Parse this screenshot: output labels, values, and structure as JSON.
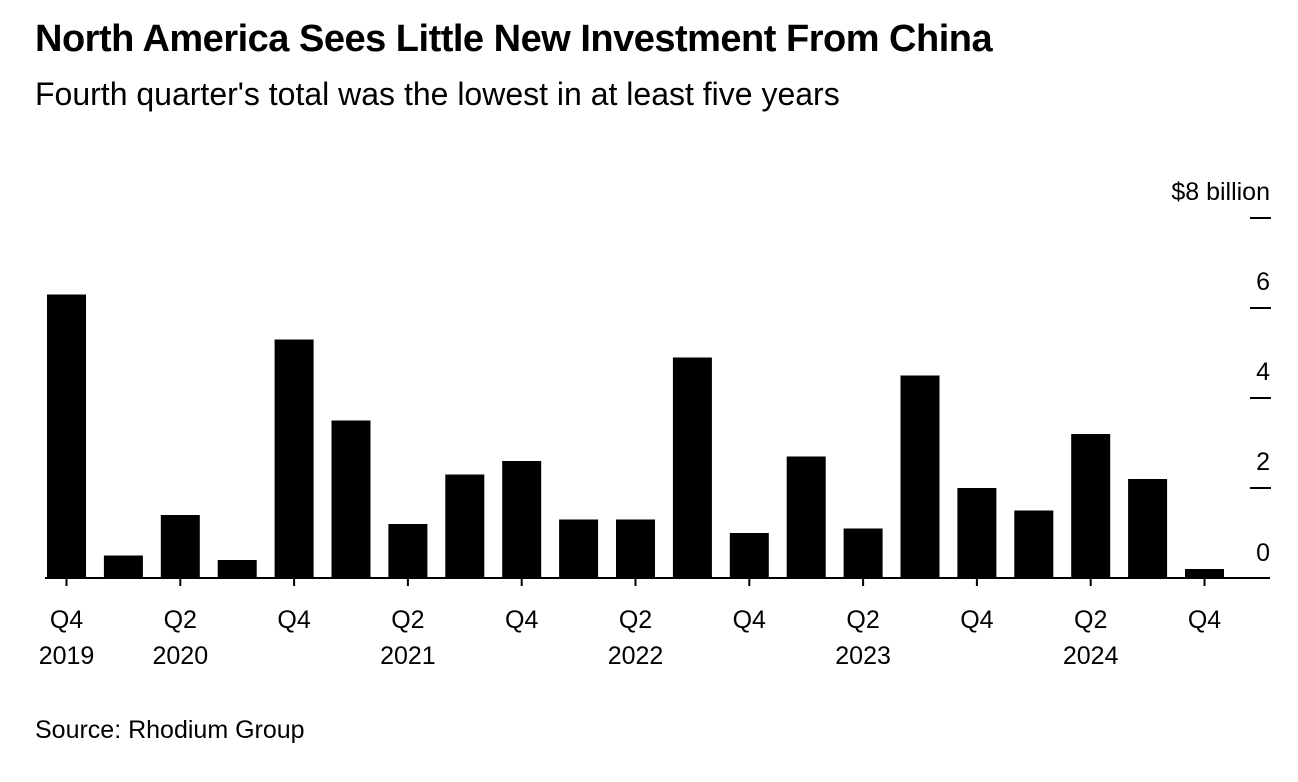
{
  "title": "North America Sees Little New Investment From China",
  "subtitle": "Fourth quarter's total was the lowest in at least five years",
  "source": "Source: Rhodium Group",
  "chart_data": {
    "type": "bar",
    "categories": [
      "Q4 2019",
      "Q1 2020",
      "Q2 2020",
      "Q3 2020",
      "Q4 2020",
      "Q1 2021",
      "Q2 2021",
      "Q3 2021",
      "Q4 2021",
      "Q1 2022",
      "Q2 2022",
      "Q3 2022",
      "Q4 2022",
      "Q1 2023",
      "Q2 2023",
      "Q3 2023",
      "Q4 2023",
      "Q1 2024",
      "Q2 2024",
      "Q3 2024",
      "Q4 2024"
    ],
    "values": [
      6.3,
      0.5,
      1.4,
      0.4,
      5.3,
      3.5,
      1.2,
      2.3,
      2.6,
      1.3,
      1.3,
      4.9,
      1.0,
      2.7,
      1.1,
      4.5,
      2.0,
      1.5,
      3.2,
      2.2,
      0.2
    ],
    "color": "#000000",
    "ylim": [
      0,
      8
    ],
    "y_ticks": [
      {
        "value": 0,
        "label": "0"
      },
      {
        "value": 2,
        "label": "2"
      },
      {
        "value": 4,
        "label": "4"
      },
      {
        "value": 6,
        "label": "6"
      },
      {
        "value": 8,
        "label": "$8 billion"
      }
    ],
    "x_ticks": [
      {
        "index": 0,
        "quarter": "Q4",
        "year": "2019"
      },
      {
        "index": 2,
        "quarter": "Q2",
        "year": "2020"
      },
      {
        "index": 4,
        "quarter": "Q4",
        "year": ""
      },
      {
        "index": 6,
        "quarter": "Q2",
        "year": "2021"
      },
      {
        "index": 8,
        "quarter": "Q4",
        "year": ""
      },
      {
        "index": 10,
        "quarter": "Q2",
        "year": "2022"
      },
      {
        "index": 12,
        "quarter": "Q4",
        "year": ""
      },
      {
        "index": 14,
        "quarter": "Q2",
        "year": "2023"
      },
      {
        "index": 16,
        "quarter": "Q4",
        "year": ""
      },
      {
        "index": 18,
        "quarter": "Q2",
        "year": "2024"
      },
      {
        "index": 20,
        "quarter": "Q4",
        "year": ""
      }
    ],
    "y_axis_position": "right",
    "grid": false,
    "legend": "none"
  }
}
